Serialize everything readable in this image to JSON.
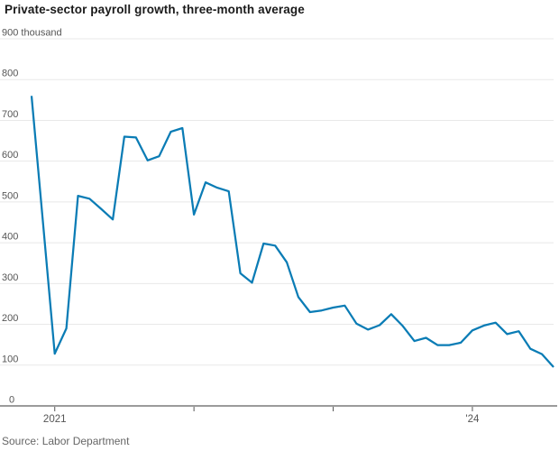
{
  "title": "Private-sector payroll growth, three-month average",
  "source": "Source: Labor Department",
  "colors": {
    "line": "#0a7cb5",
    "grid": "#e8e8e8",
    "axis": "#9b9b9b",
    "tick": "#555555",
    "axis_text": "#555555",
    "title_text": "#1a1a1a",
    "source_text": "#666666",
    "background": "#ffffff"
  },
  "chart_data": {
    "type": "line",
    "title": "Private-sector payroll growth, three-month average",
    "ylabel": "",
    "xlabel": "",
    "unit_label": "thousand",
    "ylim": [
      0,
      900
    ],
    "y_ticks": [
      0,
      100,
      200,
      300,
      400,
      500,
      600,
      700,
      800,
      900
    ],
    "grid": "horizontal",
    "legend": "none",
    "x_months": [
      "2020-11",
      "2020-12",
      "2021-01",
      "2021-02",
      "2021-03",
      "2021-04",
      "2021-05",
      "2021-06",
      "2021-07",
      "2021-08",
      "2021-09",
      "2021-10",
      "2021-11",
      "2021-12",
      "2022-01",
      "2022-02",
      "2022-03",
      "2022-04",
      "2022-05",
      "2022-06",
      "2022-07",
      "2022-08",
      "2022-09",
      "2022-10",
      "2022-11",
      "2022-12",
      "2023-01",
      "2023-02",
      "2023-03",
      "2023-04",
      "2023-05",
      "2023-06",
      "2023-07",
      "2023-08",
      "2023-09",
      "2023-10",
      "2023-11",
      "2023-12",
      "2024-01",
      "2024-02",
      "2024-03",
      "2024-04",
      "2024-05",
      "2024-06",
      "2024-07",
      "2024-08"
    ],
    "values": [
      760,
      444,
      128,
      190,
      515,
      508,
      483,
      457,
      660,
      658,
      602,
      612,
      672,
      681,
      469,
      548,
      535,
      526,
      325,
      302,
      398,
      393,
      352,
      267,
      230,
      234,
      241,
      246,
      202,
      187,
      198,
      225,
      196,
      159,
      167,
      149,
      149,
      155,
      185,
      197,
      204,
      176,
      183,
      140,
      127,
      95
    ],
    "x_year_ticks": [
      {
        "month": "2021-01",
        "label": "2021"
      },
      {
        "month": "2022-01",
        "label": ""
      },
      {
        "month": "2023-01",
        "label": ""
      },
      {
        "month": "2024-01",
        "label": "'24"
      }
    ]
  }
}
